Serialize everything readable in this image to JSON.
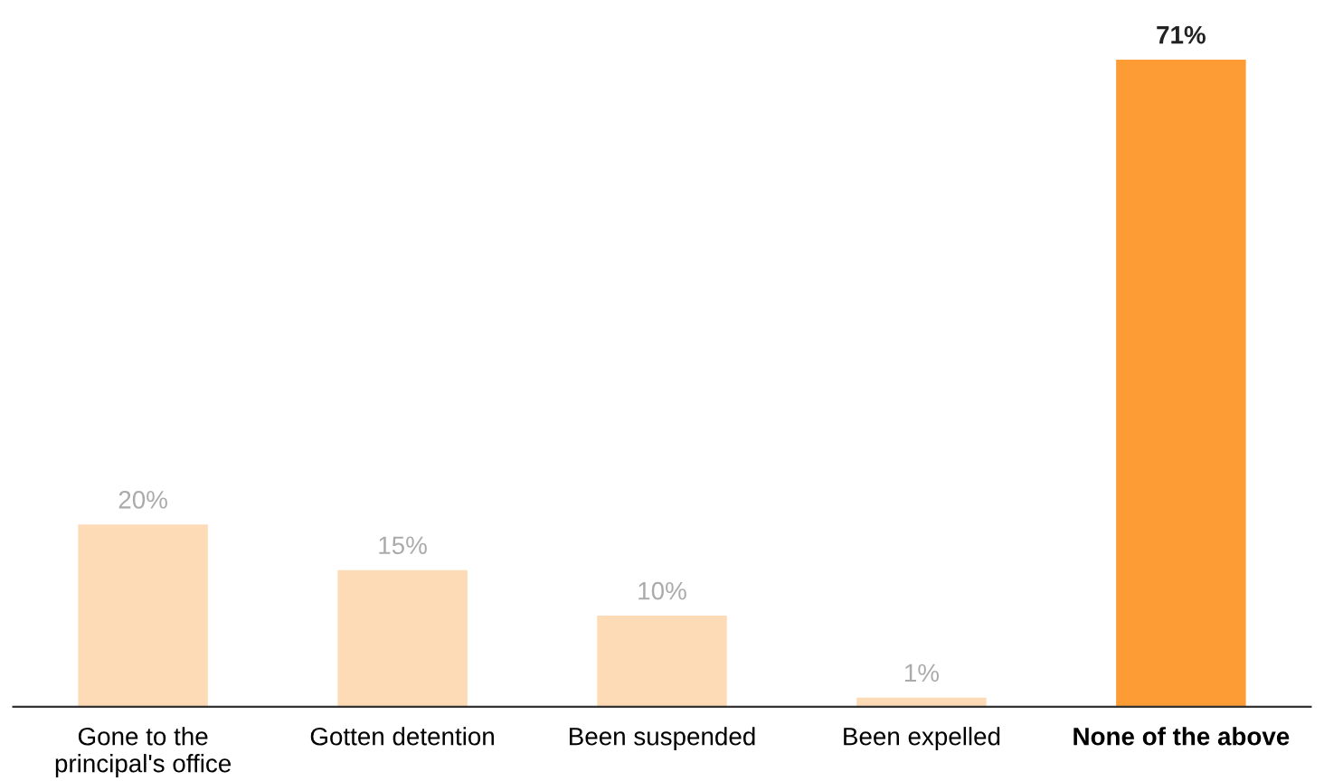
{
  "chart_data": {
    "type": "bar",
    "categories": [
      "Gone to the\nprincipal's office",
      "Gotten detention",
      "Been suspended",
      "Been expelled",
      "None of the above"
    ],
    "values": [
      20,
      15,
      10,
      1,
      71
    ],
    "value_labels": [
      "20%",
      "15%",
      "10%",
      "1%",
      "71%"
    ],
    "colors": [
      "#fddbb7",
      "#fddbb7",
      "#fddbb7",
      "#fddbb7",
      "#fd9b35"
    ],
    "grid": false,
    "legend": false
  }
}
